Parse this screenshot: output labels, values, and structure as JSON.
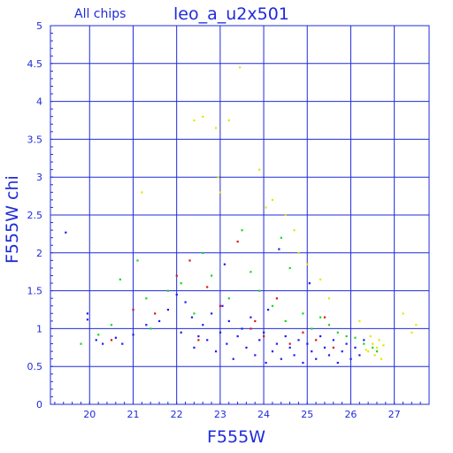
{
  "chart_data": {
    "type": "scatter",
    "header_left": "All chips",
    "title": "leo_a_u2x501",
    "xlabel": "F555W",
    "ylabel": "F555W chi",
    "xlim": [
      19.1,
      27.8
    ],
    "ylim": [
      0,
      5
    ],
    "x_ticks": [
      "20",
      "21",
      "22",
      "23",
      "24",
      "25",
      "26",
      "27"
    ],
    "y_ticks": [
      "0",
      "0.5",
      "1",
      "1.5",
      "2",
      "2.5",
      "3",
      "3.5",
      "4",
      "4.5",
      "5"
    ],
    "grid": true,
    "colors": {
      "frame": "#1f2bd9",
      "grid": "#1f2bd9",
      "text": "#1f2bd9"
    },
    "series": [
      {
        "color": "#1a1aff",
        "points": [
          [
            19.45,
            2.27
          ],
          [
            19.95,
            1.2
          ],
          [
            19.95,
            1.12
          ],
          [
            20.15,
            0.85
          ],
          [
            20.3,
            0.8
          ],
          [
            20.6,
            0.88
          ],
          [
            20.75,
            0.8
          ],
          [
            21.0,
            0.92
          ],
          [
            21.3,
            1.05
          ],
          [
            21.6,
            1.1
          ],
          [
            21.8,
            1.25
          ],
          [
            22.0,
            1.45
          ],
          [
            22.1,
            0.95
          ],
          [
            22.2,
            1.35
          ],
          [
            22.35,
            1.15
          ],
          [
            22.4,
            0.75
          ],
          [
            22.5,
            0.9
          ],
          [
            22.6,
            1.05
          ],
          [
            22.7,
            0.85
          ],
          [
            22.8,
            1.2
          ],
          [
            22.9,
            0.7
          ],
          [
            23.0,
            0.95
          ],
          [
            23.05,
            1.3
          ],
          [
            23.15,
            0.8
          ],
          [
            23.2,
            1.1
          ],
          [
            23.3,
            0.6
          ],
          [
            23.4,
            0.9
          ],
          [
            23.5,
            1.0
          ],
          [
            23.6,
            0.75
          ],
          [
            23.7,
            1.15
          ],
          [
            23.8,
            0.65
          ],
          [
            23.9,
            0.85
          ],
          [
            24.0,
            0.95
          ],
          [
            24.05,
            0.55
          ],
          [
            24.1,
            1.25
          ],
          [
            24.2,
            0.7
          ],
          [
            24.3,
            0.8
          ],
          [
            24.4,
            0.6
          ],
          [
            24.5,
            0.9
          ],
          [
            24.6,
            0.75
          ],
          [
            24.7,
            0.65
          ],
          [
            24.8,
            0.85
          ],
          [
            24.9,
            0.55
          ],
          [
            25.0,
            0.8
          ],
          [
            25.1,
            0.7
          ],
          [
            25.2,
            0.6
          ],
          [
            25.3,
            0.9
          ],
          [
            25.4,
            0.75
          ],
          [
            25.5,
            0.65
          ],
          [
            25.6,
            0.85
          ],
          [
            25.7,
            0.55
          ],
          [
            25.8,
            0.7
          ],
          [
            25.9,
            0.8
          ],
          [
            26.0,
            0.6
          ],
          [
            26.1,
            0.75
          ],
          [
            26.2,
            0.65
          ],
          [
            26.3,
            0.85
          ],
          [
            24.35,
            2.05
          ],
          [
            23.1,
            1.85
          ],
          [
            25.05,
            1.6
          ]
        ]
      },
      {
        "color": "#18d818",
        "points": [
          [
            19.8,
            0.8
          ],
          [
            20.2,
            0.92
          ],
          [
            20.7,
            1.65
          ],
          [
            21.1,
            1.9
          ],
          [
            21.4,
            1.0
          ],
          [
            21.8,
            1.5
          ],
          [
            22.1,
            1.6
          ],
          [
            22.4,
            1.2
          ],
          [
            22.8,
            1.7
          ],
          [
            23.2,
            1.4
          ],
          [
            23.5,
            2.3
          ],
          [
            23.7,
            1.75
          ],
          [
            23.9,
            1.5
          ],
          [
            24.2,
            1.3
          ],
          [
            24.5,
            1.1
          ],
          [
            24.6,
            1.8
          ],
          [
            24.9,
            1.2
          ],
          [
            25.1,
            1.0
          ],
          [
            25.3,
            1.15
          ],
          [
            25.5,
            1.05
          ],
          [
            25.7,
            0.95
          ],
          [
            25.9,
            0.9
          ],
          [
            26.1,
            0.88
          ],
          [
            26.3,
            0.8
          ],
          [
            26.5,
            0.75
          ],
          [
            26.6,
            0.7
          ],
          [
            24.4,
            2.2
          ],
          [
            22.6,
            2.0
          ],
          [
            21.3,
            1.4
          ],
          [
            20.5,
            1.05
          ]
        ]
      },
      {
        "color": "#e6e600",
        "points": [
          [
            21.2,
            2.8
          ],
          [
            22.4,
            3.75
          ],
          [
            22.6,
            3.8
          ],
          [
            22.9,
            3.65
          ],
          [
            23.2,
            3.75
          ],
          [
            23.45,
            4.45
          ],
          [
            23.9,
            3.1
          ],
          [
            24.2,
            2.7
          ],
          [
            24.5,
            2.5
          ],
          [
            24.7,
            2.3
          ],
          [
            24.8,
            2.0
          ],
          [
            25.0,
            1.85
          ],
          [
            25.3,
            1.65
          ],
          [
            25.5,
            1.4
          ],
          [
            26.4,
            0.7
          ],
          [
            26.5,
            0.8
          ],
          [
            26.55,
            0.65
          ],
          [
            26.6,
            0.75
          ],
          [
            26.65,
            0.85
          ],
          [
            26.7,
            0.6
          ],
          [
            26.45,
            0.9
          ],
          [
            26.35,
            0.72
          ],
          [
            26.75,
            0.78
          ],
          [
            27.2,
            1.2
          ],
          [
            27.5,
            1.05
          ],
          [
            27.4,
            0.95
          ],
          [
            26.2,
            1.1
          ],
          [
            23.0,
            2.8
          ],
          [
            22.95,
            3.0
          ],
          [
            24.05,
            2.6
          ]
        ]
      },
      {
        "color": "#e01010",
        "points": [
          [
            20.5,
            0.85
          ],
          [
            21.0,
            1.25
          ],
          [
            21.5,
            1.2
          ],
          [
            22.0,
            1.7
          ],
          [
            22.3,
            1.9
          ],
          [
            22.7,
            1.55
          ],
          [
            23.0,
            1.3
          ],
          [
            23.4,
            2.15
          ],
          [
            23.7,
            1.0
          ],
          [
            24.0,
            0.9
          ],
          [
            24.3,
            1.4
          ],
          [
            24.6,
            0.8
          ],
          [
            24.9,
            0.95
          ],
          [
            25.2,
            0.85
          ],
          [
            25.6,
            0.75
          ],
          [
            22.5,
            0.85
          ],
          [
            23.8,
            1.1
          ],
          [
            25.4,
            1.15
          ]
        ]
      }
    ]
  }
}
